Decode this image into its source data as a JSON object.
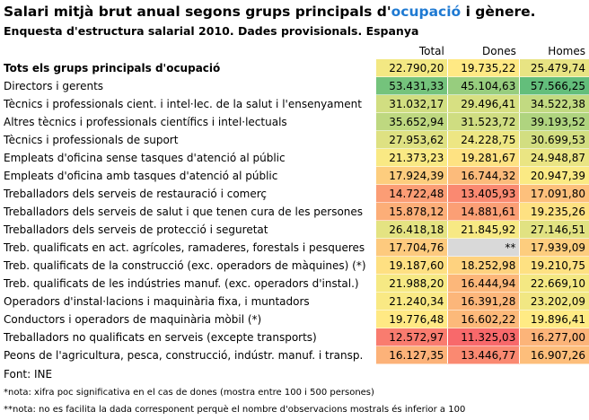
{
  "title": {
    "pre": "Salari mitjà brut anual segons grups principals d'",
    "highlight": "ocupació",
    "post": " i gènere."
  },
  "subtitle": "Enquesta d'estructura salarial 2010. Dades provisionals. Espanya",
  "headers": [
    "Total",
    "Dones",
    "Homes"
  ],
  "rows": [
    {
      "label": "Tots els grups principals d'ocupació",
      "bold": true,
      "total": "22.790,20",
      "dones": "19.735,22",
      "homes": "25.479,74"
    },
    {
      "label": "Directors i gerents",
      "total": "53.431,33",
      "dones": "45.104,63",
      "homes": "57.566,25"
    },
    {
      "label": "Tècnics i professionals cient. i intel·lec. de la salut i l'ensenyament",
      "total": "31.032,17",
      "dones": "29.496,41",
      "homes": "34.522,38"
    },
    {
      "label": "Altres tècnics i professionals científics i intel·lectuals",
      "total": "35.652,94",
      "dones": "31.523,72",
      "homes": "39.193,52"
    },
    {
      "label": "Tècnics i professionals de suport",
      "total": "27.953,62",
      "dones": "24.228,75",
      "homes": "30.699,53"
    },
    {
      "label": "Empleats d'oficina sense tasques d'atenció al públic",
      "total": "21.373,23",
      "dones": "19.281,67",
      "homes": "24.948,87"
    },
    {
      "label": "Empleats d'oficina amb tasques d'atenció al públic",
      "total": "17.924,39",
      "dones": "16.744,32",
      "homes": "20.947,39"
    },
    {
      "label": "Treballadors dels serveis de restauració i comerç",
      "total": "14.722,48",
      "dones": "13.405,93",
      "homes": "17.091,80"
    },
    {
      "label": "Treballadors dels serveis de salut i que tenen cura de les persones",
      "total": "15.878,12",
      "dones": "14.881,61",
      "homes": "19.235,26"
    },
    {
      "label": "Treballadors dels serveis de protecció i seguretat",
      "total": "26.418,18",
      "dones": "21.845,92",
      "homes": "27.146,51"
    },
    {
      "label": "Treb. qualificats en act. agrícoles, ramaderes, forestals i pesqueres",
      "total": "17.704,76",
      "dones": "**",
      "homes": "17.939,09"
    },
    {
      "label": "Treb. qualificats de la construcció (exc. operadors de màquines) (*)",
      "total": "19.187,60",
      "dones": "18.252,98",
      "homes": "19.210,75"
    },
    {
      "label": "Treb. qualificats de les indústries manuf. (exc. operadors d'instal.)",
      "total": "21.988,20",
      "dones": "16.444,94",
      "homes": "22.669,10"
    },
    {
      "label": "Operadors d'instal·lacions i maquinària fixa, i muntadors",
      "total": "21.240,34",
      "dones": "16.391,28",
      "homes": "23.202,09"
    },
    {
      "label": "Conductors i operadors de maquinària mòbil (*)",
      "total": "19.776,48",
      "dones": "16.602,22",
      "homes": "19.896,41"
    },
    {
      "label": "Treballadors no qualificats en serveis (excepte transports)",
      "total": "12.572,97",
      "dones": "11.325,03",
      "homes": "16.277,00"
    },
    {
      "label": "Peons de l'agricultura, pesca, construcció, indústr. manuf. i transp.",
      "total": "16.127,35",
      "dones": "13.446,77",
      "homes": "16.907,26"
    }
  ],
  "source": "Font: INE",
  "notes": [
    "*nota: xifra poc significativa en el cas de dones (mostra entre 100 i 500 persones)",
    "**nota: no es facilita la dada corresponent perquè el nombre d'observacions mostrals és inferior a 100"
  ],
  "colors": {
    "low": "#f8696b",
    "mid": "#ffeb84",
    "high": "#63be7b",
    "missing": "#d9d9d9",
    "highlight_text": "#1f7ad2"
  }
}
